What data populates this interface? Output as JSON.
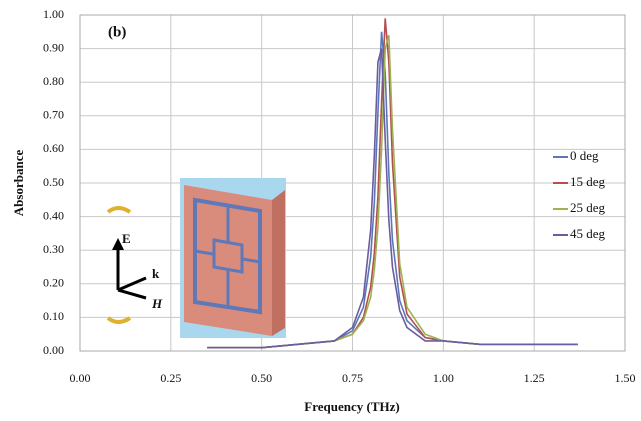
{
  "chart_data": {
    "type": "line",
    "annotation": "(b)",
    "xlabel": "Frequency (THz)",
    "ylabel": "Absorbance",
    "inset_labels": [
      "E",
      "k",
      "H"
    ],
    "grid": true,
    "legend": "right",
    "xlim": [
      0,
      1.5
    ],
    "ylim": [
      0,
      1
    ],
    "xticks": [
      {
        "value": 0,
        "label": "0.00"
      },
      {
        "value": 0.25,
        "label": "0.25"
      },
      {
        "value": 0.5,
        "label": "0.50"
      },
      {
        "value": 0.75,
        "label": "0.75"
      },
      {
        "value": 1,
        "label": "1.00"
      },
      {
        "value": 1.25,
        "label": "1.25"
      },
      {
        "value": 1.5,
        "label": "1.50"
      }
    ],
    "yticks": [
      {
        "value": 0,
        "label": "0.00"
      },
      {
        "value": 0.1,
        "label": "0.10"
      },
      {
        "value": 0.2,
        "label": "0.20"
      },
      {
        "value": 0.3,
        "label": "0.30"
      },
      {
        "value": 0.4,
        "label": "0.40"
      },
      {
        "value": 0.5,
        "label": "0.50"
      },
      {
        "value": 0.6,
        "label": "0.60"
      },
      {
        "value": 0.7,
        "label": "0.70"
      },
      {
        "value": 0.8,
        "label": "0.80"
      },
      {
        "value": 0.9,
        "label": "0.90"
      },
      {
        "value": 1,
        "label": "1.00"
      }
    ],
    "x": [
      0.35,
      0.5,
      0.6,
      0.7,
      0.75,
      0.78,
      0.8,
      0.81,
      0.82,
      0.83,
      0.84,
      0.85,
      0.86,
      0.88,
      0.9,
      0.95,
      1.0,
      1.1,
      1.2,
      1.37
    ],
    "series": [
      {
        "name": "0 deg",
        "color": "#5a78b8",
        "values": [
          0.01,
          0.01,
          0.02,
          0.03,
          0.06,
          0.13,
          0.28,
          0.44,
          0.71,
          0.95,
          0.83,
          0.53,
          0.33,
          0.15,
          0.09,
          0.04,
          0.03,
          0.02,
          0.02,
          0.02
        ]
      },
      {
        "name": "15 deg",
        "color": "#b54f4f",
        "values": [
          0.01,
          0.01,
          0.02,
          0.03,
          0.05,
          0.1,
          0.19,
          0.29,
          0.46,
          0.74,
          0.99,
          0.86,
          0.56,
          0.22,
          0.11,
          0.04,
          0.03,
          0.02,
          0.02,
          0.02
        ]
      },
      {
        "name": "25 deg",
        "color": "#9db352",
        "values": [
          0.01,
          0.01,
          0.02,
          0.03,
          0.05,
          0.09,
          0.16,
          0.24,
          0.37,
          0.6,
          0.9,
          0.94,
          0.66,
          0.26,
          0.13,
          0.05,
          0.03,
          0.02,
          0.02,
          0.02
        ]
      },
      {
        "name": "45 deg",
        "color": "#6b5c9e",
        "values": [
          0.01,
          0.01,
          0.02,
          0.03,
          0.07,
          0.16,
          0.36,
          0.58,
          0.86,
          0.9,
          0.63,
          0.39,
          0.25,
          0.12,
          0.07,
          0.03,
          0.03,
          0.02,
          0.02,
          0.02
        ]
      }
    ]
  }
}
